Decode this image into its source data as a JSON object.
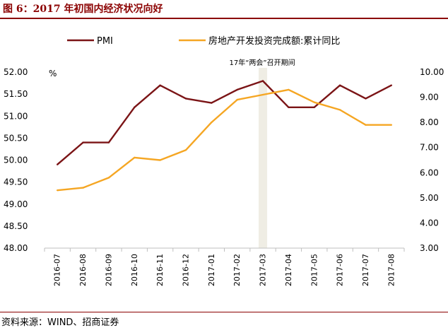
{
  "figure": {
    "title": "图 6：2017 年初国内经济状况向好",
    "source": "资料来源：WIND、招商证券",
    "title_color": "#8B0000"
  },
  "chart_data": {
    "type": "line",
    "categories": [
      "2016-07",
      "2016-08",
      "2016-09",
      "2016-10",
      "2016-11",
      "2016-12",
      "2017-01",
      "2017-02",
      "2017-03",
      "2017-04",
      "2017-05",
      "2017-06",
      "2017-07",
      "2017-08"
    ],
    "series": [
      {
        "name": "PMI",
        "axis": "left",
        "color": "#7B1416",
        "values": [
          49.9,
          50.4,
          50.4,
          51.2,
          51.7,
          51.4,
          51.3,
          51.6,
          51.8,
          51.2,
          51.2,
          51.7,
          51.4,
          51.7
        ]
      },
      {
        "name": "房地产开发投资完成额:累计同比",
        "axis": "right",
        "color": "#F5A623",
        "values": [
          5.3,
          5.4,
          5.8,
          6.6,
          6.5,
          6.9,
          8.0,
          8.9,
          9.1,
          9.3,
          8.8,
          8.5,
          7.9,
          7.9
        ]
      }
    ],
    "y_left": {
      "min": 48.0,
      "max": 52.0,
      "step": 0.5,
      "unit": "%",
      "ticks": [
        "48.00",
        "48.50",
        "49.00",
        "49.50",
        "50.00",
        "50.50",
        "51.00",
        "51.50",
        "52.00"
      ]
    },
    "y_right": {
      "min": 3.0,
      "max": 10.0,
      "step": 1.0,
      "ticks": [
        "3.00",
        "4.00",
        "5.00",
        "6.00",
        "7.00",
        "8.00",
        "9.00",
        "10.00"
      ]
    },
    "annotation": {
      "label": "17年“两会”召开期间",
      "category": "2017-03",
      "color": "#EFEDE4"
    },
    "legend_position": "top",
    "grid": false
  }
}
